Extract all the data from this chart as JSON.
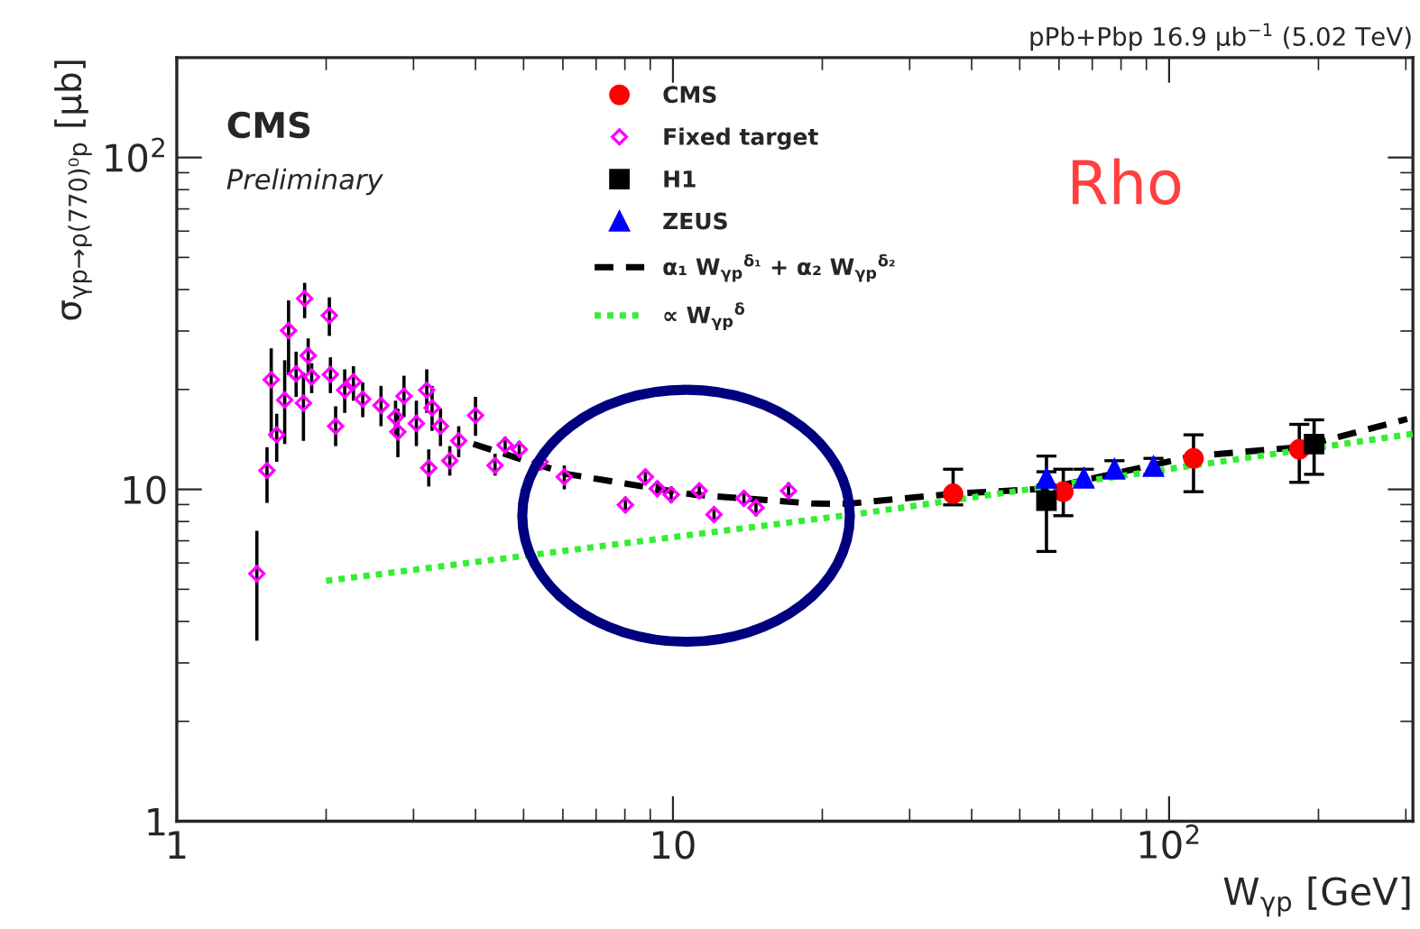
{
  "chart_data": {
    "type": "scatter",
    "xlabel": "W$_{γp}$ [GeV]",
    "ylabel": "σ$_{γp→ρ(770)⁰p}$ [μb]",
    "annotations": [
      "pPb+Pbp 16.9 μb$^{−1}$ (5.02 TeV)",
      "CMS",
      "Preliminary",
      "Rho"
    ],
    "log": "xy",
    "xlim": [
      1,
      310
    ],
    "ylim": [
      1,
      200
    ],
    "xticks": [
      1,
      10,
      {
        "value": 100,
        "label": "10$^{2}$"
      }
    ],
    "yticks": [
      1,
      10,
      {
        "value": 100,
        "label": "10$^{2}$"
      }
    ],
    "grid": false,
    "legend": "top",
    "series": [
      {
        "name": "CMS",
        "color": "#ff0000",
        "marker": "circle",
        "x": [
          36.7,
          61.2,
          112,
          183
        ],
        "values": [
          9.7,
          9.84,
          12.4,
          13.2
        ],
        "errors": [
          [
            8.98,
            11.5
          ],
          [
            8.33,
            11.5
          ],
          [
            9.84,
            14.6
          ],
          [
            10.5,
            15.7
          ]
        ]
      },
      {
        "name": "Fixed target",
        "color": "#ff00ff",
        "marker": "diamond",
        "x": [
          1.45,
          1.52,
          1.55,
          1.59,
          1.65,
          1.68,
          1.74,
          1.8,
          1.81,
          1.84,
          1.87,
          2.03,
          2.04,
          2.09,
          2.18,
          2.27,
          2.37,
          2.58,
          2.76,
          2.79,
          2.87,
          3.04,
          3.19,
          3.22,
          3.27,
          3.4,
          3.55,
          3.7,
          4.0,
          4.38,
          4.59,
          4.9,
          5.4,
          6.04,
          8.02,
          8.8,
          9.3,
          9.92,
          11.3,
          12.1,
          13.9,
          14.7,
          17.1
        ],
        "values": [
          5.57,
          11.4,
          21.4,
          14.6,
          18.6,
          30.1,
          22.3,
          18.2,
          37.6,
          25.3,
          21.8,
          33.4,
          22.2,
          15.5,
          19.9,
          21.1,
          18.7,
          17.9,
          16.5,
          14.9,
          19.1,
          15.8,
          19.9,
          11.6,
          17.6,
          15.5,
          12.2,
          14.0,
          16.7,
          11.8,
          13.6,
          13.2,
          12.1,
          10.9,
          8.98,
          10.9,
          10.05,
          9.64,
          9.9,
          8.4,
          9.4,
          8.8,
          9.9
        ],
        "errors": [
          [
            3.5,
            7.5
          ],
          [
            9.1,
            13.4
          ],
          [
            14.3,
            26.6
          ],
          [
            12.1,
            16.9
          ],
          [
            13.7,
            24.5
          ],
          [
            22.1,
            37.1
          ],
          [
            19,
            26
          ],
          [
            14,
            22.5
          ],
          [
            32.8,
            41.9
          ],
          [
            22.5,
            28.5
          ],
          [
            19.5,
            24
          ],
          [
            29,
            37.9
          ],
          [
            19.5,
            25
          ],
          [
            13.5,
            17.8
          ],
          [
            17,
            23
          ],
          [
            18.5,
            23.5
          ],
          [
            16.5,
            21
          ],
          [
            15.5,
            20.5
          ],
          [
            14.5,
            18.5
          ],
          [
            12.5,
            17.5
          ],
          [
            16.5,
            22
          ],
          [
            13.5,
            18.5
          ],
          [
            17,
            23
          ],
          [
            10.2,
            13.2
          ],
          [
            15,
            20.5
          ],
          [
            13.5,
            17.5
          ],
          [
            11,
            13.5
          ],
          [
            12.5,
            15.5
          ],
          [
            14.5,
            19
          ],
          [
            11,
            12.8
          ],
          [
            12.8,
            14.4
          ],
          [
            12.5,
            14
          ],
          [
            11.4,
            12.8
          ],
          [
            10,
            11.8
          ],
          [
            8.5,
            9.5
          ],
          [
            10.3,
            11.5
          ],
          [
            9.5,
            10.6
          ],
          [
            9.1,
            10.2
          ],
          [
            9.4,
            10.4
          ],
          [
            8.0,
            8.8
          ],
          [
            8.9,
            9.9
          ],
          [
            8.3,
            9.3
          ],
          [
            9.3,
            10.5
          ]
        ]
      },
      {
        "name": "H1",
        "color": "#000000",
        "marker": "square",
        "x": [
          56.6,
          196
        ],
        "values": [
          9.25,
          13.7
        ],
        "errors": [
          [
            6.5,
            12.6
          ],
          [
            11.1,
            16.2
          ]
        ]
      },
      {
        "name": "ZEUS",
        "color": "#0000ff",
        "marker": "triangle",
        "x": [
          56.6,
          67.3,
          77.6,
          93
        ],
        "values": [
          10.8,
          10.8,
          11.5,
          11.7
        ],
        "errors": [
          [
            10.3,
            11.3
          ],
          [
            10.2,
            11.5
          ],
          [
            10.9,
            12.2
          ],
          [
            11.1,
            12.4
          ]
        ]
      },
      {
        "name": "α₁ W$_{γp}$$^{δ₁}$ + α₂ W$_{γp}$$^{δ₂}$",
        "color": "#000000",
        "type": "line",
        "line_style": "dashed",
        "x": [
          3.96,
          6.16,
          11.0,
          19.2,
          22.5,
          36.7,
          56.6,
          112,
          183,
          302
        ],
        "values": [
          13.7,
          11.1,
          9.64,
          9.06,
          9.05,
          9.7,
          10.05,
          12.6,
          13.4,
          16.3
        ]
      },
      {
        "name": "∝ W$_{γp}$$^{δ}$",
        "color": "#33ee33",
        "type": "line",
        "line_style": "dotted",
        "x": [
          2.0,
          24.5,
          310
        ],
        "values": [
          5.3,
          8.5,
          14.7
        ]
      }
    ]
  }
}
